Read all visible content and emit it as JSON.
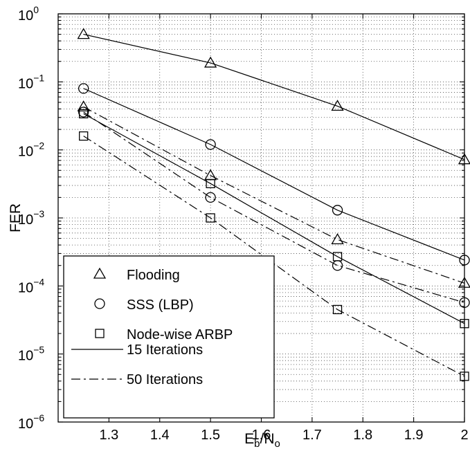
{
  "chart_data": {
    "type": "line",
    "xlabel": {
      "main": "E",
      "sub1": "b",
      "slash": "/N",
      "sub2": "o"
    },
    "ylabel": "FER",
    "xlim": [
      1.2,
      2.0
    ],
    "ylim": [
      1e-06,
      1
    ],
    "yscale": "log",
    "grid": true,
    "legend_position": "bottom-left",
    "x_ticks": [
      1.3,
      1.4,
      1.5,
      1.6,
      1.7,
      1.8,
      1.9,
      2
    ],
    "x_tick_labels": [
      "1.3",
      "1.4",
      "1.5",
      "1.6",
      "1.7",
      "1.8",
      "1.9",
      "2"
    ],
    "y_ticks": [
      {
        "value": 1,
        "base": "10",
        "exp": "0"
      },
      {
        "value": 0.1,
        "base": "10",
        "exp": "−1"
      },
      {
        "value": 0.01,
        "base": "10",
        "exp": "−2"
      },
      {
        "value": 0.001,
        "base": "10",
        "exp": "−3"
      },
      {
        "value": 0.0001,
        "base": "10",
        "exp": "−4"
      },
      {
        "value": 1e-05,
        "base": "10",
        "exp": "−5"
      },
      {
        "value": 1e-06,
        "base": "10",
        "exp": "−6"
      }
    ],
    "x": [
      1.25,
      1.5,
      1.75,
      2.0
    ],
    "series": [
      {
        "name": "Flooding",
        "marker": "triangle",
        "iterations": 15,
        "values": [
          0.5,
          0.19,
          0.044,
          0.0072
        ]
      },
      {
        "name": "SSS (LBP)",
        "marker": "circle",
        "iterations": 15,
        "values": [
          0.08,
          0.012,
          0.0013,
          0.00024
        ]
      },
      {
        "name": "Node-wise ARBP",
        "marker": "square",
        "iterations": 15,
        "values": [
          0.034,
          0.0032,
          0.00027,
          2.8e-05
        ]
      },
      {
        "name": "Flooding",
        "marker": "triangle",
        "iterations": 50,
        "values": [
          0.043,
          0.0042,
          0.00048,
          0.00011
        ]
      },
      {
        "name": "SSS (LBP)",
        "marker": "circle",
        "iterations": 50,
        "values": [
          0.036,
          0.002,
          0.0002,
          5.7e-05
        ]
      },
      {
        "name": "Node-wise ARBP",
        "marker": "square",
        "iterations": 50,
        "values": [
          0.016,
          0.001,
          4.5e-05,
          4.7e-06
        ]
      }
    ],
    "legend": {
      "markers": [
        {
          "marker": "triangle",
          "label": "Flooding"
        },
        {
          "marker": "circle",
          "label": "SSS (LBP)"
        },
        {
          "marker": "square",
          "label": "Node-wise ARBP"
        }
      ],
      "lines": [
        {
          "style": "solid",
          "label": "15 Iterations"
        },
        {
          "style": "dashdot",
          "label": "50 Iterations"
        }
      ]
    }
  }
}
